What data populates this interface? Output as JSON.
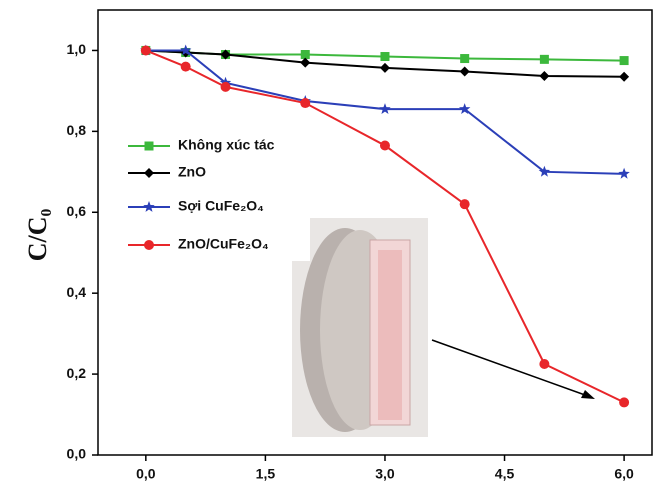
{
  "chart_data": {
    "type": "line",
    "ylabel": "C/C₀",
    "x": [
      0,
      0.5,
      1,
      2,
      3,
      4,
      5,
      6
    ],
    "series": [
      {
        "name": "Không xúc tác",
        "color": "#3cb83c",
        "marker": "square",
        "values": [
          1.0,
          0.995,
          0.99,
          0.99,
          0.985,
          0.98,
          0.978,
          0.975
        ]
      },
      {
        "name": "ZnO",
        "color": "#000000",
        "marker": "diamond",
        "values": [
          1.0,
          0.995,
          0.99,
          0.97,
          0.957,
          0.948,
          0.937,
          0.935
        ]
      },
      {
        "name": "Sợi CuFe₂O₄",
        "color": "#2b3fb8",
        "marker": "star",
        "values": [
          1.0,
          1.0,
          0.92,
          0.875,
          0.855,
          0.855,
          0.7,
          0.695
        ]
      },
      {
        "name": "ZnO/CuFe₂O₄",
        "color": "#e8262a",
        "marker": "circle",
        "values": [
          1.0,
          0.96,
          0.91,
          0.87,
          0.765,
          0.62,
          0.225,
          0.13
        ]
      }
    ],
    "xlim": [
      -0.6,
      6.35
    ],
    "ylim": [
      0,
      1.1
    ],
    "xticks": [
      {
        "value": 0,
        "label": "0,0"
      },
      {
        "value": 1.5,
        "label": "1,5"
      },
      {
        "value": 3,
        "label": "3,0"
      },
      {
        "value": 4.5,
        "label": "4,5"
      },
      {
        "value": 6,
        "label": "6,0"
      }
    ],
    "yticks": [
      {
        "value": 0,
        "label": "0,0"
      },
      {
        "value": 0.2,
        "label": "0,2"
      },
      {
        "value": 0.4,
        "label": "0,4"
      },
      {
        "value": 0.6,
        "label": "0,6"
      },
      {
        "value": 0.8,
        "label": "0,8"
      },
      {
        "value": 1.0,
        "label": "1,0"
      }
    ],
    "legend": "upper-left"
  }
}
